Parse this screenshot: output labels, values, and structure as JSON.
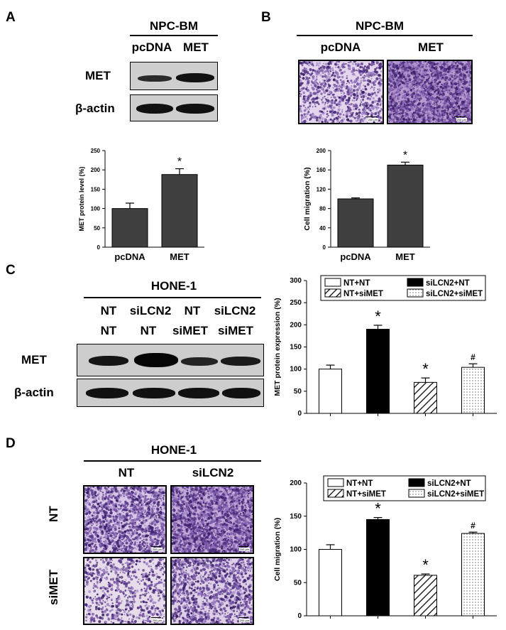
{
  "panels": {
    "A": {
      "letter": "A",
      "cell_line": "NPC-BM",
      "lanes": [
        "pcDNA",
        "MET"
      ],
      "blot_rows": [
        "MET",
        "β-actin"
      ],
      "chart_data": {
        "type": "bar",
        "categories": [
          "pcDNA",
          "MET"
        ],
        "values": [
          100,
          188
        ],
        "errors": [
          14,
          15
        ],
        "significance": [
          "",
          "*"
        ],
        "ylabel": "MET protein level (%)",
        "ylim": [
          0,
          250
        ],
        "yticks": [
          0,
          50,
          100,
          150,
          200,
          250
        ],
        "bar_color": "#404040"
      }
    },
    "B": {
      "letter": "B",
      "cell_line": "NPC-BM",
      "conditions": [
        "pcDNA",
        "MET"
      ],
      "scale_text": "200 μm",
      "chart_data": {
        "type": "bar",
        "categories": [
          "pcDNA",
          "MET"
        ],
        "values": [
          100,
          170
        ],
        "errors": [
          2,
          6
        ],
        "significance": [
          "",
          "*"
        ],
        "ylabel": "Cell migration (%)",
        "ylim": [
          0,
          200
        ],
        "yticks": [
          0,
          40,
          80,
          120,
          160,
          200
        ],
        "bar_color": "#404040"
      }
    },
    "C": {
      "letter": "C",
      "cell_line": "HONE-1",
      "lanes_top": [
        "NT",
        "siLCN2",
        "NT",
        "siLCN2"
      ],
      "lanes_bottom": [
        "NT",
        "NT",
        "siMET",
        "siMET"
      ],
      "blot_rows": [
        "MET",
        "β-actin"
      ],
      "chart_data": {
        "type": "bar",
        "categories": [
          "NT+NT",
          "siLCN2+NT",
          "NT+siMET",
          "siLCN2+siMET"
        ],
        "values": [
          100,
          190,
          70,
          104
        ],
        "errors": [
          9,
          9,
          10,
          8
        ],
        "significance": [
          "",
          "*",
          "*",
          "#"
        ],
        "ylabel": "MET protein expression (%)",
        "ylim": [
          0,
          300
        ],
        "yticks": [
          0,
          50,
          100,
          150,
          200,
          250,
          300
        ],
        "legend": [
          "NT+NT",
          "siLCN2+NT",
          "NT+siMET",
          "siLCN2+siMET"
        ],
        "fills": [
          "white",
          "black",
          "hatch",
          "dots"
        ]
      }
    },
    "D": {
      "letter": "D",
      "cell_line": "HONE-1",
      "columns": [
        "NT",
        "siLCN2"
      ],
      "rows": [
        "NT",
        "siMET"
      ],
      "scale_text": "200 μm",
      "chart_data": {
        "type": "bar",
        "categories": [
          "NT+NT",
          "siLCN2+NT",
          "NT+siMET",
          "siLCN2+siMET"
        ],
        "values": [
          100,
          145,
          61,
          124
        ],
        "errors": [
          7,
          3,
          2,
          2
        ],
        "significance": [
          "",
          "*",
          "*",
          "#"
        ],
        "ylabel": "Cell migration (%)",
        "ylim": [
          0,
          200
        ],
        "yticks": [
          0,
          50,
          100,
          150,
          200
        ],
        "legend": [
          "NT+NT",
          "siLCN2+NT",
          "NT+siMET",
          "siLCN2+siMET"
        ],
        "fills": [
          "white",
          "black",
          "hatch",
          "dots"
        ]
      }
    }
  }
}
